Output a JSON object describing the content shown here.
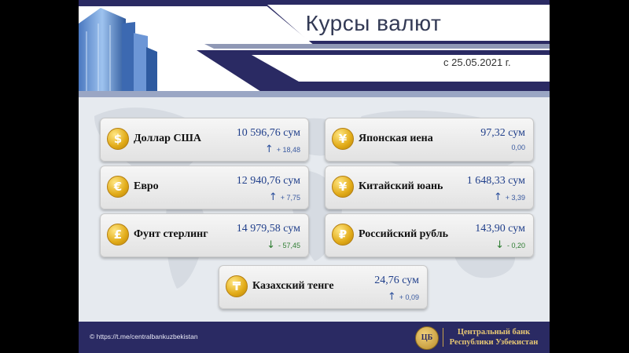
{
  "header": {
    "title": "Курсы валют",
    "date": "с 25.05.2021 г."
  },
  "currencies": [
    {
      "name": "Доллар США",
      "symbol": "$",
      "rate": "10 596,76 сум",
      "change": "+ 18,48",
      "direction": "up"
    },
    {
      "name": "Японская иена",
      "symbol": "¥",
      "rate": "97,32 сум",
      "change": "0,00",
      "direction": "none"
    },
    {
      "name": "Евро",
      "symbol": "€",
      "rate": "12 940,76 сум",
      "change": "+ 7,75",
      "direction": "up"
    },
    {
      "name": "Китайский юань",
      "symbol": "¥",
      "rate": "1 648,33 сум",
      "change": "+ 3,39",
      "direction": "up"
    },
    {
      "name": "Фунт стерлинг",
      "symbol": "£",
      "rate": "14 979,58 сум",
      "change": "- 57,45",
      "direction": "down"
    },
    {
      "name": "Российский рубль",
      "symbol": "₽",
      "rate": "143,90 сум",
      "change": "- 0,20",
      "direction": "down"
    },
    {
      "name": "Казахский тенге",
      "symbol": "₸",
      "rate": "24,76 сум",
      "change": "+ 0,09",
      "direction": "up"
    }
  ],
  "arrows": {
    "up": "↑",
    "down": "↓"
  },
  "footer": {
    "link": "© https://t.me/centralbankuzbekistan",
    "logo": "ЦБ",
    "bank_line1": "Центральный банк",
    "bank_line2": "Республики Узбекистан"
  },
  "colors": {
    "navy": "#2a2a63",
    "rate_blue": "#1f3e8a",
    "coin_gold": "#e1aa17",
    "down_green": "#2e7d32"
  }
}
